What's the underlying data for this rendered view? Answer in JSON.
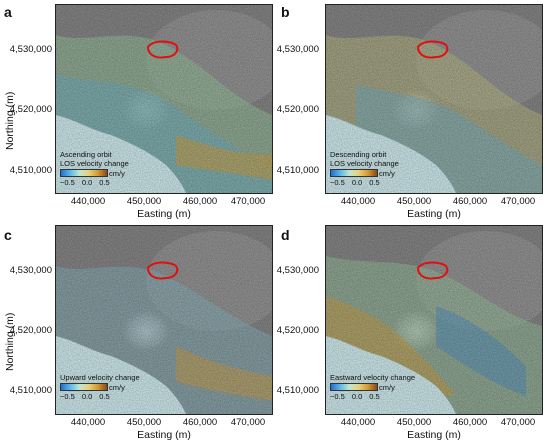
{
  "common": {
    "yticks": [
      "4,530,000",
      "4,520,000",
      "4,510,000"
    ],
    "xticks": [
      "440,000",
      "450,000",
      "460,000",
      "470,000"
    ],
    "ylabel": "Northing (m)",
    "xlabel": "Easting (m)",
    "cbar_unit": "cm/y",
    "cbar_ticks": [
      "−0.5",
      "0.0",
      "0.5"
    ],
    "colors": {
      "sea": "#d8f4f8",
      "land": "#8c8c8c",
      "boundary": "#e01010"
    }
  },
  "panels": [
    {
      "letter": "a",
      "legend_lines": [
        "Ascending orbit",
        "LOS velocity change"
      ]
    },
    {
      "letter": "b",
      "legend_lines": [
        "Descending orbit",
        "LOS velocity change"
      ]
    },
    {
      "letter": "c",
      "legend_lines": [
        "Upward velocity change"
      ]
    },
    {
      "letter": "d",
      "legend_lines": [
        "Eastward velocity change"
      ]
    }
  ]
}
